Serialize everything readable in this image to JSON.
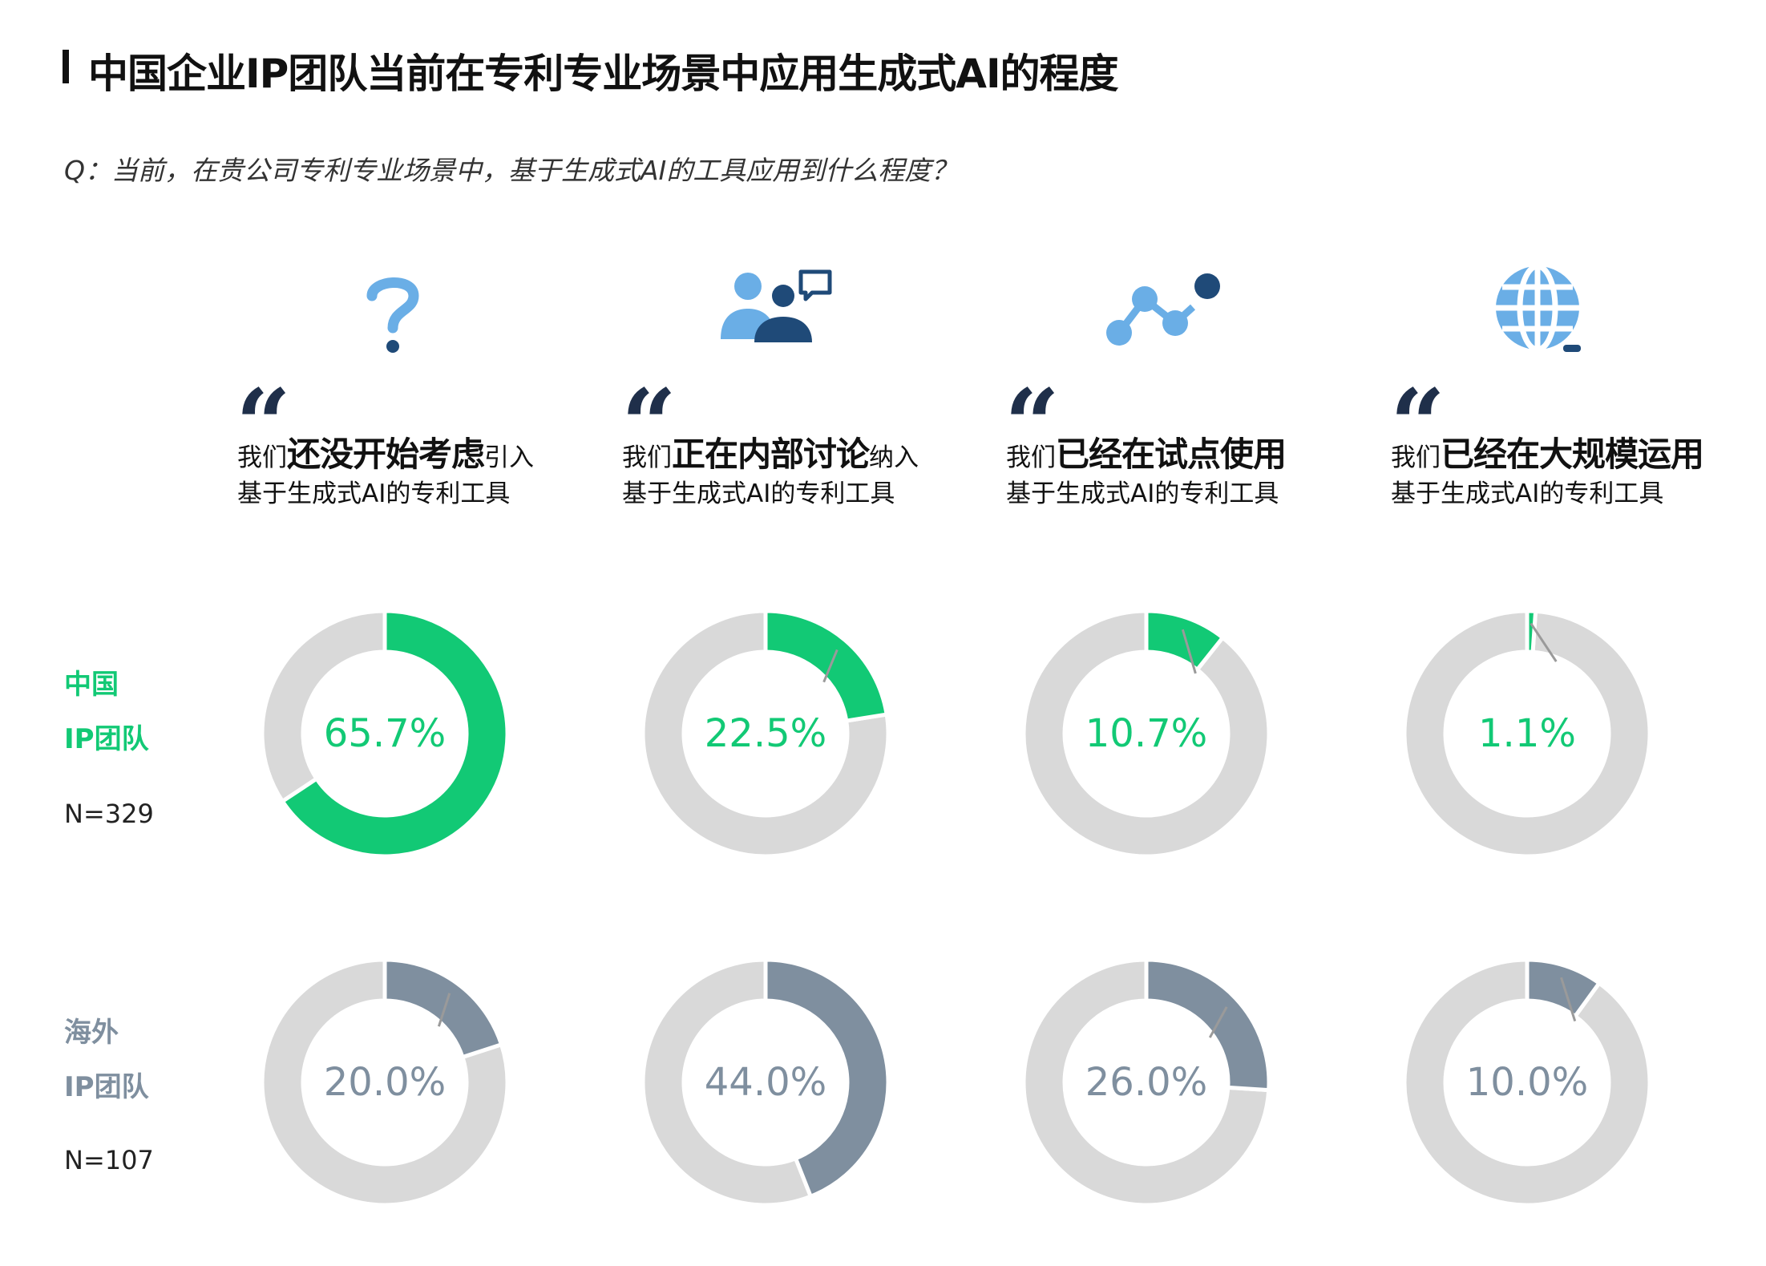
{
  "header": {
    "title": "中国企业IP团队当前在专利专业场景中应用生成式AI的程度",
    "question": "Q：当前，在贵公司专利专业场景中，基于生成式AI的工具应用到什么程度？"
  },
  "quote_glyph": "“",
  "categories": [
    {
      "pre": "我们",
      "strong": "还没开始考虑",
      "post": "引入",
      "line2": "基于生成式AI的专利工具",
      "icon": "question-mark-icon"
    },
    {
      "pre": "我们",
      "strong": "正在内部讨论",
      "post": "纳入",
      "line2": "基于生成式AI的专利工具",
      "icon": "people-discussion-icon"
    },
    {
      "pre": "我们",
      "strong": "已经在试点使用",
      "post": "",
      "line2": "基于生成式AI的专利工具",
      "icon": "trend-nodes-icon"
    },
    {
      "pre": "我们",
      "strong": "已经在大规模运用",
      "post": "",
      "line2": "基于生成式AI的专利工具",
      "icon": "globe-icon"
    }
  ],
  "groups": [
    {
      "label_line1": "中国",
      "label_line2": "IP团队",
      "n": "N=329"
    },
    {
      "label_line1": "海外",
      "label_line2": "IP团队",
      "n": "N=107"
    }
  ],
  "colors": {
    "china": "#12c975",
    "overseas": "#7f8f9f",
    "remainder": "#d9d9d9",
    "icon_light": "#6aaee6",
    "icon_dark": "#1f4a78",
    "leader_line": "#9a9a9a"
  },
  "chart_data": {
    "type": "pie",
    "variant": "donut-grid",
    "categories": [
      "还没开始考虑",
      "正在内部讨论",
      "已经在试点使用",
      "已经在大规模运用"
    ],
    "series": [
      {
        "name": "中国IP团队",
        "values": [
          65.7,
          22.5,
          10.7,
          1.1
        ],
        "labels": [
          "65.7%",
          "22.5%",
          "10.7%",
          "1.1%"
        ]
      },
      {
        "name": "海外IP团队",
        "values": [
          20.0,
          44.0,
          26.0,
          10.0
        ],
        "labels": [
          "20.0%",
          "44.0%",
          "26.0%",
          "10.0%"
        ]
      }
    ],
    "unit": "%",
    "total": 100
  }
}
